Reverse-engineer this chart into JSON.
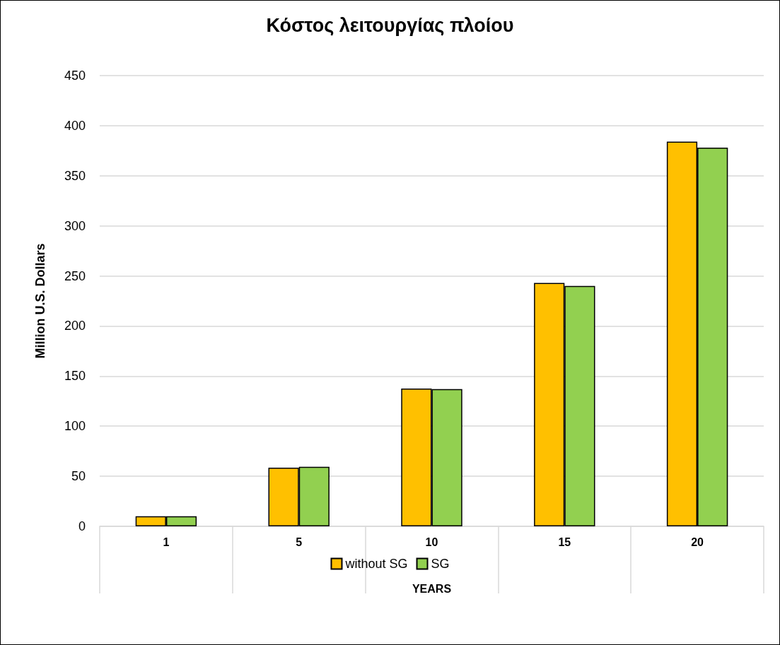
{
  "chart_data": {
    "type": "bar",
    "title": "Κόστος λειτουργίας πλοίου",
    "xlabel": "YEARS",
    "ylabel": "Million U.S. Dollars",
    "categories": [
      "1",
      "5",
      "10",
      "15",
      "20"
    ],
    "series": [
      {
        "name": "without SG",
        "color": "#ffc000",
        "values": [
          10,
          58.5,
          137.5,
          243,
          384
        ]
      },
      {
        "name": "SG",
        "color": "#92d050",
        "values": [
          10,
          59.5,
          137,
          240,
          378
        ]
      }
    ],
    "ylim": [
      0,
      450
    ],
    "yticks": [
      0,
      50,
      100,
      150,
      200,
      250,
      300,
      350,
      400,
      450
    ],
    "grid": "y",
    "legend": "bottom"
  }
}
